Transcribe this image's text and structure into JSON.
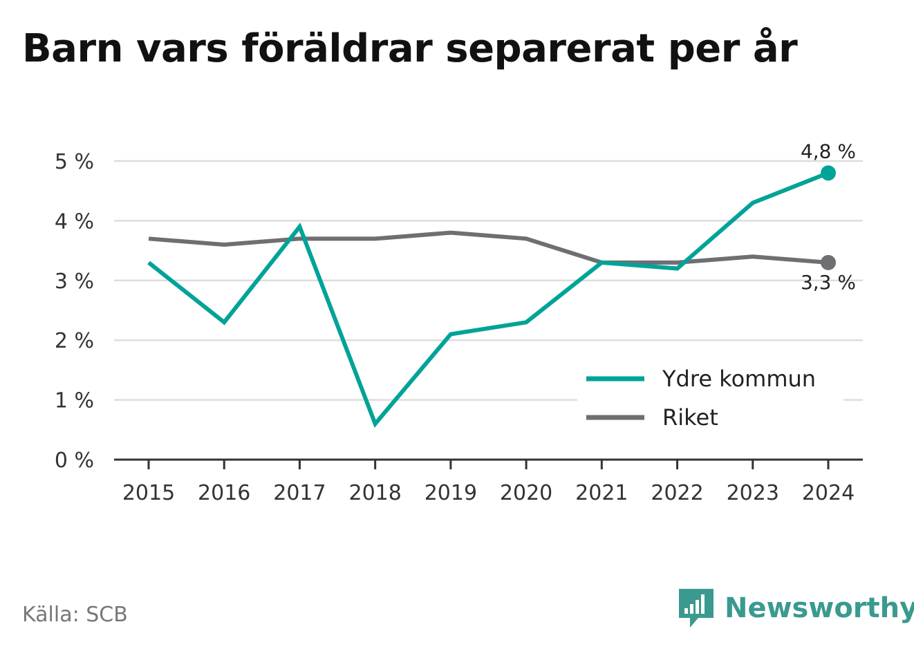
{
  "chart_data": {
    "type": "line",
    "title": "Barn vars föräldrar separerat per år",
    "x": [
      "2015",
      "2016",
      "2017",
      "2018",
      "2019",
      "2020",
      "2021",
      "2022",
      "2023",
      "2024"
    ],
    "ylim": [
      0,
      5
    ],
    "yticks": [
      0,
      1,
      2,
      3,
      4,
      5
    ],
    "ytick_labels": [
      "0 %",
      "1 %",
      "2 %",
      "3 %",
      "4 %",
      "5 %"
    ],
    "grid": true,
    "legend_position": "bottom-right",
    "series": [
      {
        "name": "Ydre kommun",
        "color": "#00a398",
        "values": [
          3.3,
          2.3,
          3.9,
          0.6,
          2.1,
          2.3,
          3.3,
          3.2,
          4.3,
          4.8
        ],
        "end_label": "4,8 %"
      },
      {
        "name": "Riket",
        "color": "#6e6e73",
        "values": [
          3.7,
          3.6,
          3.7,
          3.7,
          3.8,
          3.7,
          3.3,
          3.3,
          3.4,
          3.3
        ],
        "end_label": "3,3 %"
      }
    ]
  },
  "source": "Källa: SCB",
  "brand": {
    "name": "Newsworthy",
    "icon": "bar-chart-icon",
    "color": "#3a9a8f"
  }
}
